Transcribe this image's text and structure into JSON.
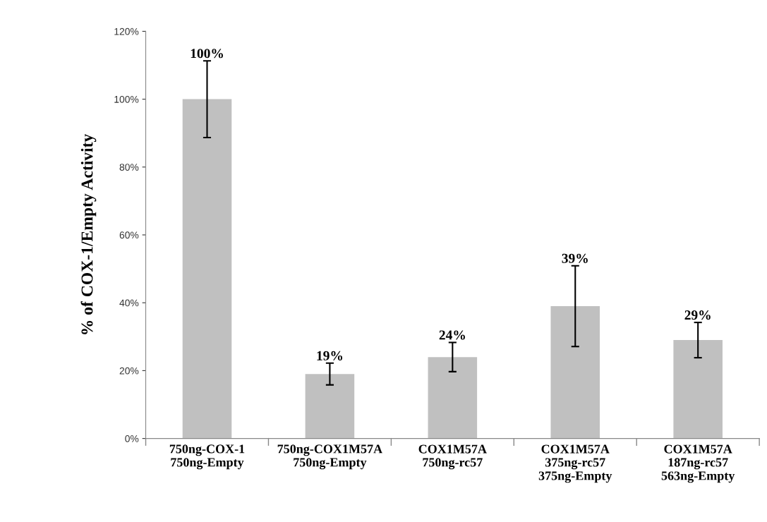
{
  "chart_data": {
    "type": "bar",
    "ylabel": "% of COX-1/Empty Activity",
    "categories": [
      "750ng-COX-1\n750ng-Empty",
      "750ng-COX1M57A\n750ng-Empty",
      "COX1M57A\n750ng-rc57",
      "COX1M57A\n375ng-rc57\n375ng-Empty",
      "COX1M57A\n187ng-rc57\n563ng-Empty"
    ],
    "values": [
      100,
      19,
      24,
      39,
      29
    ],
    "errors": [
      11.3,
      3.2,
      4.3,
      11.9,
      5.2
    ],
    "color": "#c0c0c0",
    "value_labels": [
      "100%",
      "19%",
      "24%",
      "39%",
      "29%"
    ],
    "ylim": [
      0,
      120
    ],
    "yticks": [
      {
        "value": 0,
        "label": "0%"
      },
      {
        "value": 20,
        "label": "20%"
      },
      {
        "value": 40,
        "label": "40%"
      },
      {
        "value": 60,
        "label": "60%"
      },
      {
        "value": 80,
        "label": "80%"
      },
      {
        "value": 100,
        "label": "100%"
      },
      {
        "value": 120,
        "label": "120%"
      }
    ],
    "grid": false,
    "legend": false
  }
}
